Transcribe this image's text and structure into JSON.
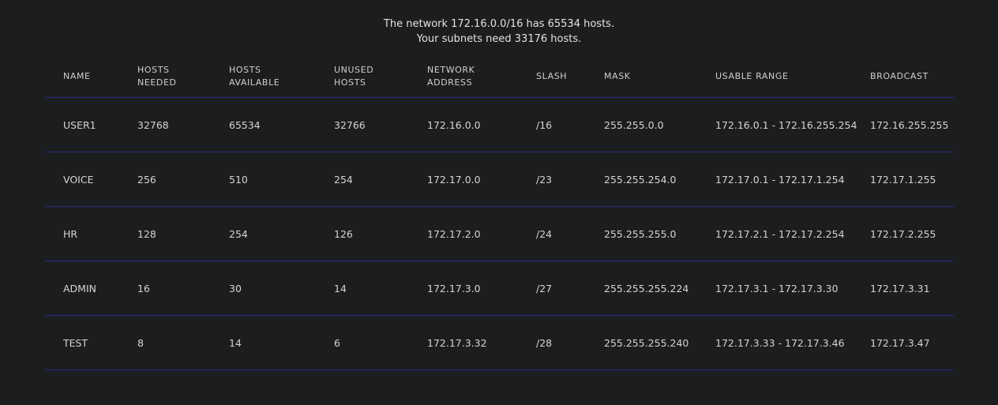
{
  "summary": {
    "line1": "The network 172.16.0.0/16 has 65534 hosts.",
    "line2": "Your subnets need 33176 hosts."
  },
  "headers": [
    {
      "line1": "NAME",
      "line2": ""
    },
    {
      "line1": "HOSTS",
      "line2": "NEEDED"
    },
    {
      "line1": "HOSTS",
      "line2": "AVAILABLE"
    },
    {
      "line1": "UNUSED",
      "line2": "HOSTS"
    },
    {
      "line1": "NETWORK",
      "line2": "ADDRESS"
    },
    {
      "line1": "SLASH",
      "line2": ""
    },
    {
      "line1": "MASK",
      "line2": ""
    },
    {
      "line1": "USABLE RANGE",
      "line2": ""
    },
    {
      "line1": "BROADCAST",
      "line2": ""
    }
  ],
  "rows": [
    [
      "USER1",
      "32768",
      "65534",
      "32766",
      "172.16.0.0",
      "/16",
      "255.255.0.0",
      "172.16.0.1 - 172.16.255.254",
      "172.16.255.255"
    ],
    [
      "VOICE",
      "256",
      "510",
      "254",
      "172.17.0.0",
      "/23",
      "255.255.254.0",
      "172.17.0.1 - 172.17.1.254",
      "172.17.1.255"
    ],
    [
      "HR",
      "128",
      "254",
      "126",
      "172.17.2.0",
      "/24",
      "255.255.255.0",
      "172.17.2.1 - 172.17.2.254",
      "172.17.2.255"
    ],
    [
      "ADMIN",
      "16",
      "30",
      "14",
      "172.17.3.0",
      "/27",
      "255.255.255.224",
      "172.17.3.1 - 172.17.3.30",
      "172.17.3.31"
    ],
    [
      "TEST",
      "8",
      "14",
      "6",
      "172.17.3.32",
      "/28",
      "255.255.255.240",
      "172.17.3.33 - 172.17.3.46",
      "172.17.3.47"
    ]
  ],
  "colors": {
    "background": "#1c1d1f",
    "divider": "#2a2a86",
    "text": "#d4d4d4"
  }
}
